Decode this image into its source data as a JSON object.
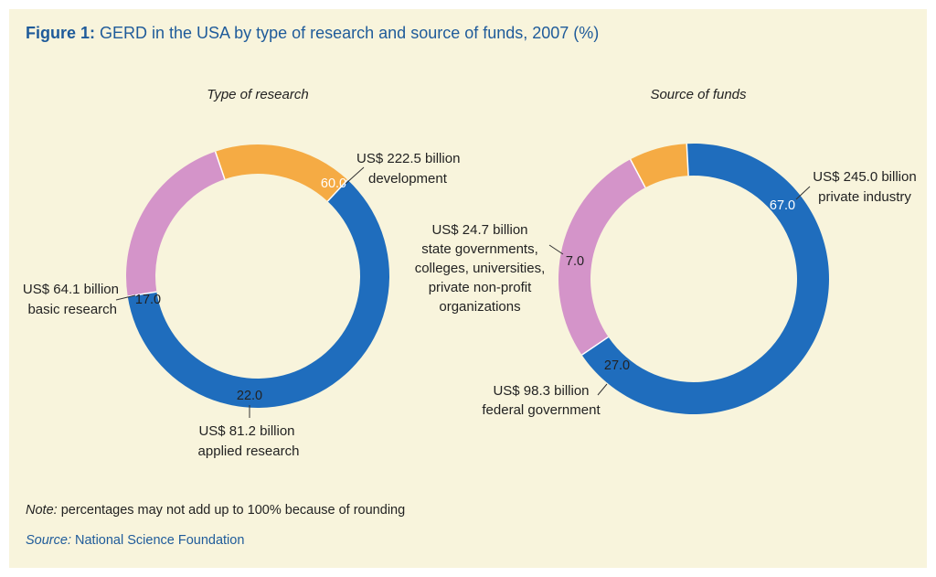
{
  "figure": {
    "title_lead": "Figure 1:",
    "title_rest": " GERD in the USA by type of research and source of funds, 2007 (%)",
    "note_lead": "Note:",
    "note_rest": " percentages may not add up to 100% because of rounding",
    "source_lead": "Source:",
    "source_rest": " National Science Foundation"
  },
  "colors": {
    "blue": "#1f6dbd",
    "orange": "#f5ab44",
    "pink": "#d494c9",
    "title_blue": "#1f5b9a",
    "background": "#f8f4dc"
  },
  "chart_data": [
    {
      "type": "pie",
      "title": "Type of research",
      "slices": [
        {
          "label": "60.0",
          "value": 60.0,
          "amount": "US$ 222.5 billion",
          "category": "development",
          "color": "#1f6dbd"
        },
        {
          "label": "22.0",
          "value": 22.0,
          "amount": "US$ 81.2 billion",
          "category": "applied research",
          "color": "#d494c9"
        },
        {
          "label": "17.0",
          "value": 17.0,
          "amount": "US$ 64.1 billion",
          "category": "basic research",
          "color": "#f5ab44"
        }
      ]
    },
    {
      "type": "pie",
      "title": "Source of funds",
      "slices": [
        {
          "label": "67.0",
          "value": 67.0,
          "amount": "US$ 245.0 billion",
          "category": "private industry",
          "color": "#1f6dbd"
        },
        {
          "label": "27.0",
          "value": 27.0,
          "amount": "US$ 98.3 billion",
          "category": "federal government",
          "color": "#d494c9"
        },
        {
          "label": "7.0",
          "value": 7.0,
          "amount": "US$ 24.7 billion",
          "category_lines": [
            "state governments,",
            "colleges, universities,",
            "private non-profit",
            "organizations"
          ],
          "color": "#f5ab44"
        }
      ]
    }
  ]
}
